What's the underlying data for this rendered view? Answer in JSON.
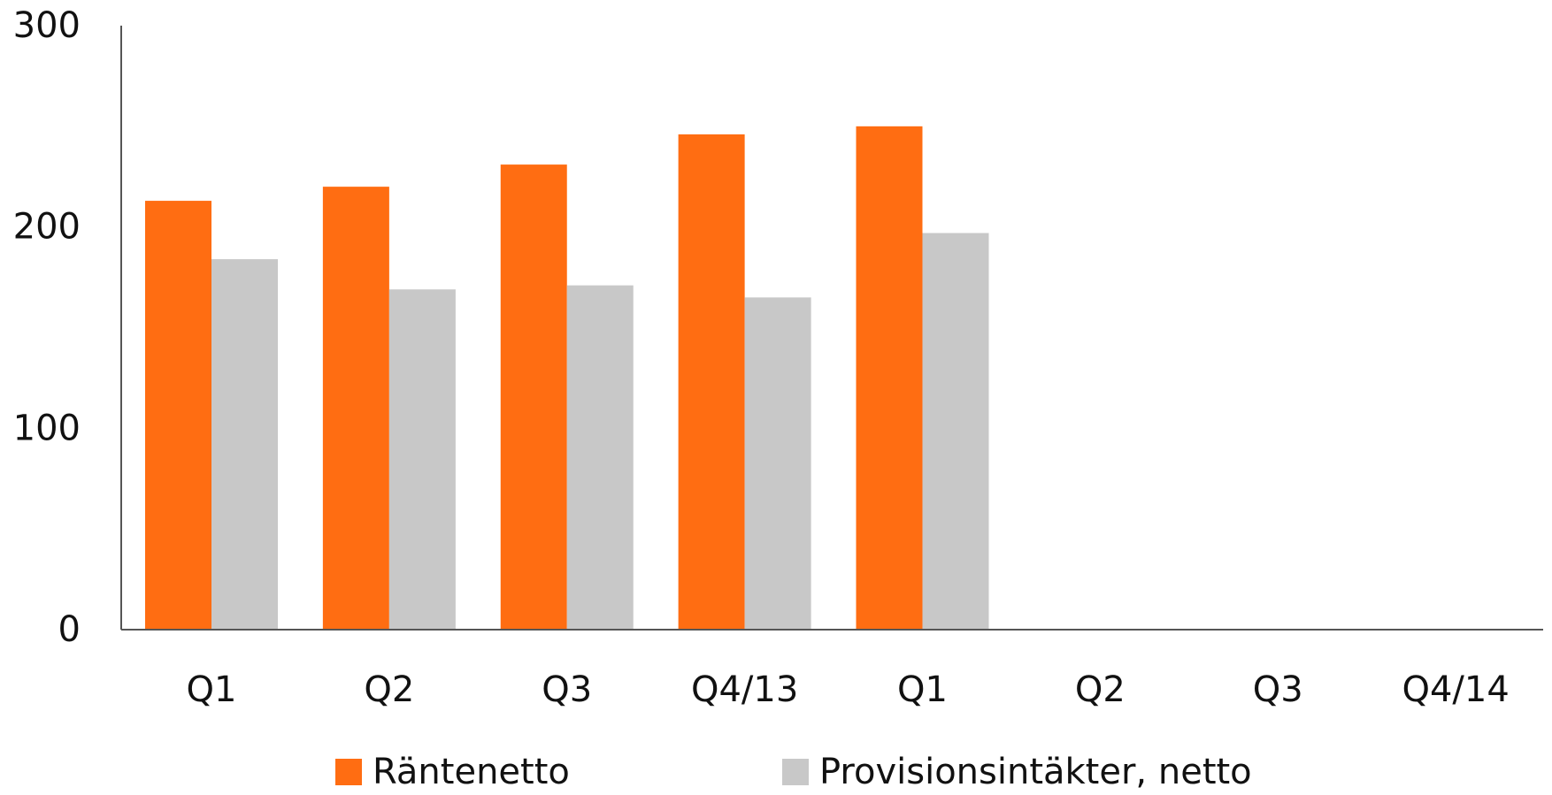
{
  "chart_data": {
    "type": "bar",
    "categories": [
      "Q1",
      "Q2",
      "Q3",
      "Q4/13",
      "Q1",
      "Q2",
      "Q3",
      "Q4/14"
    ],
    "series": [
      {
        "name": "Räntenetto",
        "color": "#ff6d12",
        "values": [
          213,
          220,
          231,
          246,
          250,
          null,
          null,
          null
        ]
      },
      {
        "name": "Provisionsintäkter, netto",
        "color": "#c8c8c8",
        "values": [
          184,
          169,
          171,
          165,
          197,
          null,
          null,
          null
        ]
      }
    ],
    "ylim": [
      0,
      300
    ],
    "yticks": [
      0,
      100,
      200,
      300
    ],
    "grid": false,
    "legend": "bottom"
  }
}
